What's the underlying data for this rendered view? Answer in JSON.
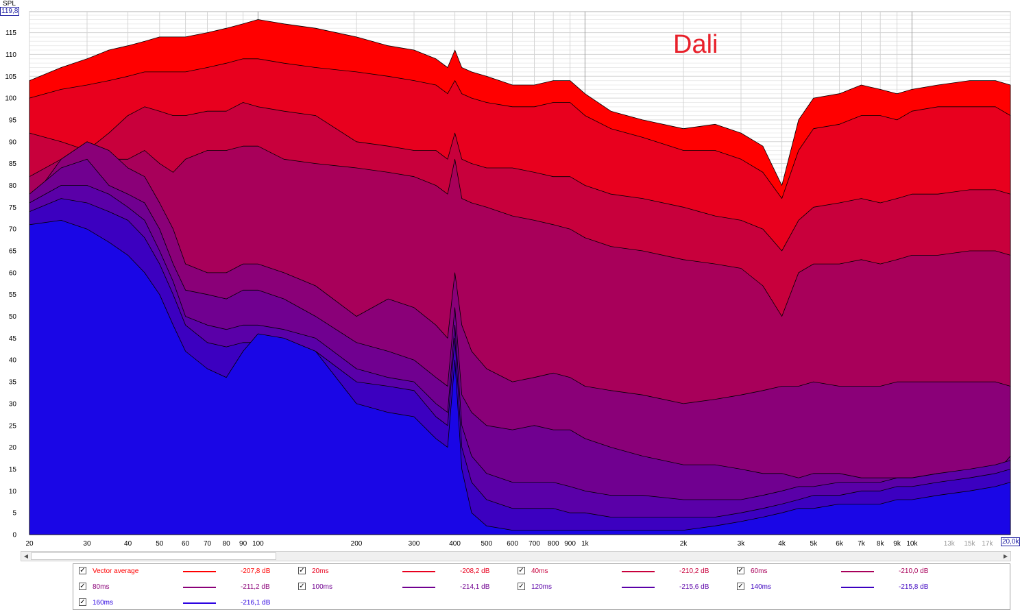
{
  "chart_data": {
    "type": "area",
    "title": "",
    "annotation": "Dali",
    "ylabel": "SPL",
    "xlabel": "",
    "y_max_label": "119,8",
    "x_max_label": "20,0k",
    "xscale": "log",
    "xlim": [
      20,
      20000
    ],
    "ylim": [
      0,
      119.8
    ],
    "grid": true,
    "legend_position": "bottom",
    "y_ticks": [
      0,
      5,
      10,
      15,
      20,
      25,
      30,
      35,
      40,
      45,
      50,
      55,
      60,
      65,
      70,
      75,
      80,
      85,
      90,
      95,
      100,
      105,
      110,
      115
    ],
    "x_ticks": [
      {
        "v": 20,
        "label": "20"
      },
      {
        "v": 30,
        "label": "30"
      },
      {
        "v": 40,
        "label": "40"
      },
      {
        "v": 50,
        "label": "50"
      },
      {
        "v": 60,
        "label": "60"
      },
      {
        "v": 70,
        "label": "70"
      },
      {
        "v": 80,
        "label": "80"
      },
      {
        "v": 90,
        "label": "90"
      },
      {
        "v": 100,
        "label": "100"
      },
      {
        "v": 200,
        "label": "200"
      },
      {
        "v": 300,
        "label": "300"
      },
      {
        "v": 400,
        "label": "400"
      },
      {
        "v": 500,
        "label": "500"
      },
      {
        "v": 600,
        "label": "600"
      },
      {
        "v": 700,
        "label": "700"
      },
      {
        "v": 800,
        "label": "800"
      },
      {
        "v": 900,
        "label": "900"
      },
      {
        "v": 1000,
        "label": "1k"
      },
      {
        "v": 2000,
        "label": "2k"
      },
      {
        "v": 3000,
        "label": "3k"
      },
      {
        "v": 4000,
        "label": "4k"
      },
      {
        "v": 5000,
        "label": "5k"
      },
      {
        "v": 6000,
        "label": "6k"
      },
      {
        "v": 7000,
        "label": "7k"
      },
      {
        "v": 8000,
        "label": "8k"
      },
      {
        "v": 9000,
        "label": "9k"
      },
      {
        "v": 10000,
        "label": "10k"
      },
      {
        "v": 13000,
        "label": "13k",
        "dim": true
      },
      {
        "v": 15000,
        "label": "15k",
        "dim": true
      },
      {
        "v": 17000,
        "label": "17k",
        "dim": true
      }
    ],
    "x": [
      20,
      25,
      30,
      35,
      40,
      45,
      50,
      55,
      60,
      70,
      80,
      90,
      100,
      120,
      150,
      200,
      250,
      300,
      350,
      380,
      400,
      420,
      450,
      500,
      600,
      700,
      800,
      900,
      1000,
      1200,
      1500,
      2000,
      2500,
      3000,
      3500,
      4000,
      4500,
      5000,
      6000,
      7000,
      8000,
      9000,
      10000,
      12000,
      15000,
      18000,
      20000
    ],
    "series": [
      {
        "name": "Vector average",
        "db": "-207,8 dB",
        "color": "#ff0000",
        "fill": "#ff0000",
        "values": [
          104,
          107,
          109,
          111,
          112,
          113,
          114,
          114,
          114,
          115,
          116,
          117,
          118,
          117,
          116,
          114,
          112,
          111,
          109,
          107,
          111,
          107,
          106,
          105,
          103,
          103,
          104,
          104,
          101,
          97,
          95,
          93,
          94,
          92,
          89,
          80,
          95,
          100,
          101,
          103,
          102,
          101,
          102,
          103,
          104,
          104,
          103
        ]
      },
      {
        "name": "20ms",
        "db": "-208,2 dB",
        "color": "#e8001e",
        "fill": "#e8001e",
        "values": [
          100,
          102,
          103,
          104,
          105,
          106,
          106,
          106,
          106,
          107,
          108,
          109,
          109,
          108,
          107,
          106,
          105,
          104,
          103,
          101,
          104,
          101,
          100,
          99,
          98,
          98,
          99,
          99,
          96,
          93,
          91,
          88,
          88,
          86,
          83,
          77,
          88,
          93,
          94,
          96,
          96,
          95,
          97,
          98,
          98,
          98,
          96
        ]
      },
      {
        "name": "40ms",
        "db": "-210,2 dB",
        "color": "#c8003c",
        "fill": "#c8003c",
        "values": [
          92,
          90,
          88,
          92,
          96,
          98,
          97,
          96,
          96,
          97,
          97,
          99,
          98,
          97,
          96,
          90,
          89,
          88,
          88,
          86,
          92,
          86,
          85,
          84,
          84,
          83,
          82,
          82,
          80,
          78,
          77,
          75,
          73,
          72,
          70,
          65,
          72,
          75,
          76,
          77,
          76,
          77,
          78,
          78,
          79,
          79,
          78
        ]
      },
      {
        "name": "60ms",
        "db": "-210,0 dB",
        "color": "#a8005a",
        "fill": "#a8005a",
        "values": [
          82,
          86,
          90,
          86,
          86,
          88,
          85,
          83,
          86,
          88,
          88,
          89,
          89,
          86,
          85,
          84,
          83,
          82,
          80,
          78,
          86,
          77,
          76,
          75,
          73,
          72,
          71,
          70,
          68,
          66,
          65,
          63,
          62,
          61,
          57,
          50,
          60,
          62,
          62,
          63,
          62,
          63,
          64,
          64,
          65,
          65,
          64
        ]
      },
      {
        "name": "80ms",
        "db": "-211,2 dB",
        "color": "#8a0078",
        "fill": "#8a0078",
        "values": [
          76,
          86,
          90,
          88,
          84,
          82,
          76,
          70,
          62,
          60,
          60,
          62,
          62,
          60,
          57,
          50,
          54,
          52,
          48,
          45,
          60,
          48,
          42,
          38,
          35,
          36,
          37,
          36,
          34,
          33,
          32,
          30,
          31,
          32,
          33,
          34,
          34,
          35,
          34,
          34,
          34,
          35,
          35,
          35,
          35,
          35,
          34
        ]
      },
      {
        "name": "100ms",
        "db": "-214,1 dB",
        "color": "#700090",
        "fill": "#700090",
        "values": [
          78,
          84,
          86,
          80,
          78,
          76,
          70,
          62,
          56,
          55,
          54,
          56,
          56,
          54,
          50,
          44,
          42,
          40,
          36,
          34,
          52,
          32,
          28,
          25,
          24,
          25,
          24,
          24,
          22,
          20,
          18,
          16,
          16,
          15,
          14,
          14,
          13,
          14,
          14,
          13,
          13,
          13,
          13,
          14,
          14,
          14,
          18
        ]
      },
      {
        "name": "120ms",
        "db": "-215,6 dB",
        "color": "#5a00a8",
        "fill": "#5a00a8",
        "values": [
          76,
          80,
          80,
          78,
          75,
          72,
          65,
          58,
          50,
          48,
          47,
          48,
          48,
          47,
          45,
          38,
          36,
          35,
          30,
          28,
          48,
          25,
          18,
          14,
          12,
          12,
          12,
          11,
          10,
          9,
          9,
          8,
          8,
          8,
          9,
          10,
          11,
          11,
          12,
          12,
          12,
          13,
          13,
          14,
          15,
          16,
          17
        ]
      },
      {
        "name": "140ms",
        "db": "-215,8 dB",
        "color": "#3c00c0",
        "fill": "#3c00c0",
        "values": [
          74,
          77,
          76,
          74,
          72,
          68,
          62,
          55,
          48,
          44,
          43,
          44,
          44,
          43,
          42,
          35,
          34,
          33,
          27,
          25,
          45,
          20,
          12,
          8,
          6,
          6,
          6,
          5,
          5,
          4,
          4,
          4,
          4,
          5,
          6,
          7,
          8,
          9,
          9,
          10,
          10,
          11,
          11,
          12,
          13,
          14,
          15
        ]
      },
      {
        "name": "160ms",
        "db": "-216,1 dB",
        "color": "#2a00e0",
        "fill": "#1a06e6",
        "values": [
          71,
          72,
          70,
          67,
          64,
          60,
          55,
          48,
          42,
          38,
          36,
          42,
          46,
          45,
          42,
          30,
          28,
          27,
          22,
          20,
          40,
          15,
          5,
          2,
          1,
          1,
          1,
          1,
          1,
          1,
          1,
          1,
          2,
          3,
          4,
          5,
          6,
          6,
          7,
          7,
          7,
          8,
          8,
          9,
          10,
          11,
          12
        ]
      }
    ]
  },
  "legend": {
    "checkbox_mark": "✓"
  },
  "scrollbar": {
    "left_arrow": "◀",
    "right_arrow": "▶"
  }
}
